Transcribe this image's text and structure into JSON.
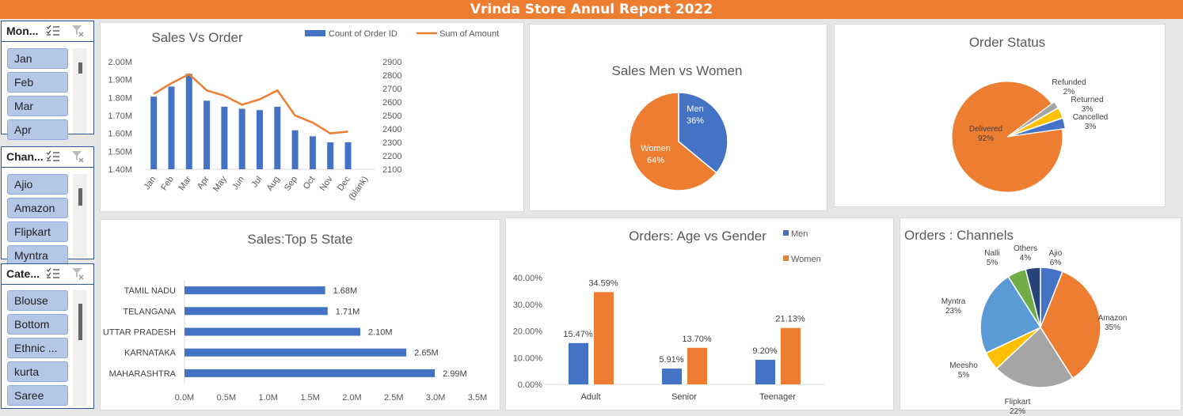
{
  "banner": {
    "title": "Vrinda Store Annul Report 2022"
  },
  "slicers": [
    {
      "title": "Mon...",
      "items": [
        "Jan",
        "Feb",
        "Mar",
        "Apr"
      ]
    },
    {
      "title": "Chan...",
      "items": [
        "Ajio",
        "Amazon",
        "Flipkart",
        "Myntra"
      ]
    },
    {
      "title": "Cate...",
      "items": [
        "Blouse",
        "Bottom",
        "Ethnic ...",
        "kurta",
        "Saree"
      ]
    }
  ],
  "colors": {
    "blue": "#4472c4",
    "orange": "#ed7d31",
    "gray": "#a5a5a5",
    "yellow": "#ffc000",
    "lightblue": "#5b9bd5",
    "green": "#70ad47",
    "navy": "#264478"
  },
  "chart_data": [
    {
      "type": "bar",
      "title": "Sales Vs Order",
      "categories": [
        "Jan",
        "Feb",
        "Mar",
        "Apr",
        "May",
        "Jun",
        "Jul",
        "Aug",
        "Sep",
        "Oct",
        "Nov",
        "Dec",
        "(blank)"
      ],
      "series": [
        {
          "name": "Count of Order ID",
          "kind": "bar",
          "axis": "left",
          "values": [
            2640,
            2715,
            2810,
            2610,
            2565,
            2550,
            2540,
            2565,
            2390,
            2345,
            2300,
            2300,
            null
          ]
        },
        {
          "name": "Sum of Amount",
          "kind": "line",
          "axis": "right",
          "values": [
            1.82,
            1.88,
            1.93,
            1.84,
            1.81,
            1.76,
            1.79,
            1.84,
            1.7,
            1.66,
            1.6,
            1.61,
            null
          ]
        }
      ],
      "left_axis": {
        "ticks": [
          "2.00M",
          "1.90M",
          "1.80M",
          "1.70M",
          "1.60M",
          "1.50M",
          "1.40M"
        ],
        "range": [
          1.4,
          2.0
        ]
      },
      "right_axis": {
        "ticks": [
          "2900",
          "2800",
          "2700",
          "2600",
          "2500",
          "2400",
          "2300",
          "2200",
          "2100"
        ],
        "range": [
          2100,
          2900
        ]
      },
      "legend_position": "top-right"
    },
    {
      "type": "pie",
      "title": "Sales Men vs Women",
      "slices": [
        {
          "label": "Men",
          "value": 36,
          "pct": "36%"
        },
        {
          "label": "Women",
          "value": 64,
          "pct": "64%"
        }
      ]
    },
    {
      "type": "pie",
      "title": "Order Status",
      "slices": [
        {
          "label": "Delivered",
          "value": 92,
          "pct": "92%"
        },
        {
          "label": "Refunded",
          "value": 2,
          "pct": "2%"
        },
        {
          "label": "Returned",
          "value": 3,
          "pct": "3%"
        },
        {
          "label": "Cancelled",
          "value": 3,
          "pct": "3%"
        }
      ]
    },
    {
      "type": "bar",
      "orientation": "horizontal",
      "title": "Sales:Top 5 State",
      "categories": [
        "TAMIL NADU",
        "TELANGANA",
        "UTTAR PRADESH",
        "KARNATAKA",
        "MAHARASHTRA"
      ],
      "values": [
        1.68,
        1.71,
        2.1,
        2.65,
        2.99
      ],
      "labels": [
        "1.68M",
        "1.71M",
        "2.10M",
        "2.65M",
        "2.99M"
      ],
      "xticks": [
        "0.0M",
        "0.5M",
        "1.0M",
        "1.5M",
        "2.0M",
        "2.5M",
        "3.0M",
        "3.5M"
      ],
      "xlim": [
        0,
        3.5
      ]
    },
    {
      "type": "bar",
      "title": "Orders: Age vs Gender",
      "categories": [
        "Adult",
        "Senior",
        "Teenager"
      ],
      "series": [
        {
          "name": "Men",
          "values": [
            15.47,
            5.91,
            9.2
          ],
          "labels": [
            "15.47%",
            "5.91%",
            "9.20%"
          ]
        },
        {
          "name": "Women",
          "values": [
            34.59,
            13.7,
            21.13
          ],
          "labels": [
            "34.59%",
            "13.70%",
            "21.13%"
          ]
        }
      ],
      "yticks": [
        "40.00%",
        "30.00%",
        "20.00%",
        "10.00%",
        "0.00%"
      ],
      "ylim": [
        0,
        40
      ],
      "legend_position": "top-right"
    },
    {
      "type": "pie",
      "title": "Orders : Channels",
      "slices": [
        {
          "label": "Ajio",
          "value": 6,
          "pct": "6%"
        },
        {
          "label": "Amazon",
          "value": 35,
          "pct": "35%"
        },
        {
          "label": "Flipkart",
          "value": 22,
          "pct": "22%"
        },
        {
          "label": "Meesho",
          "value": 5,
          "pct": "5%"
        },
        {
          "label": "Myntra",
          "value": 23,
          "pct": "23%"
        },
        {
          "label": "Nalli",
          "value": 5,
          "pct": "5%"
        },
        {
          "label": "Others",
          "value": 4,
          "pct": "4%"
        }
      ]
    }
  ]
}
